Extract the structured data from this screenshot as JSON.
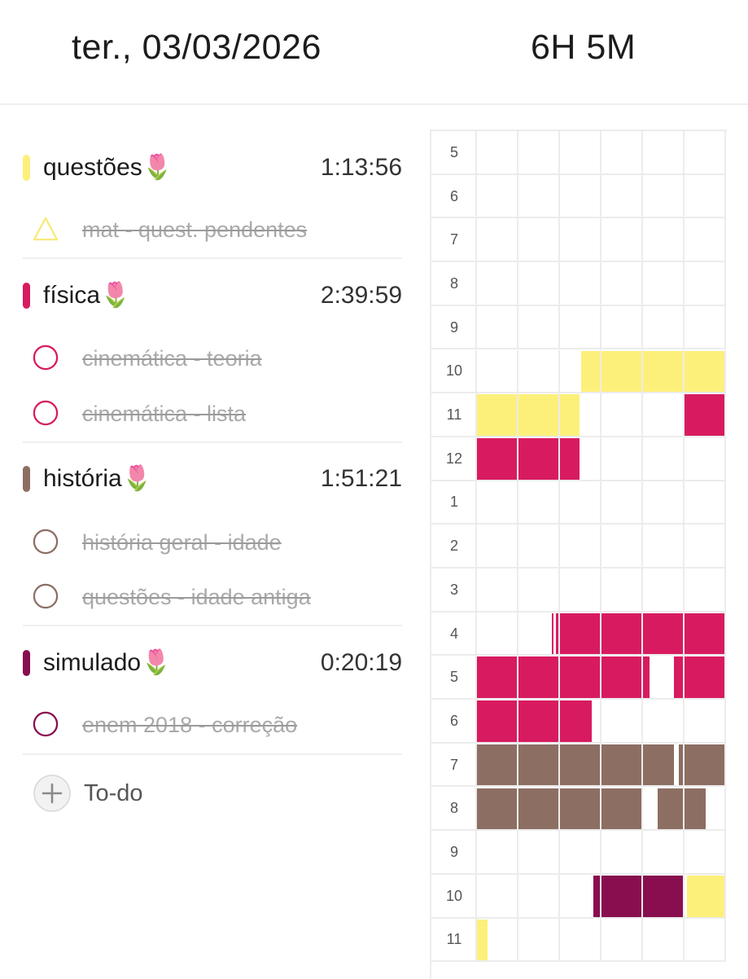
{
  "header": {
    "date": "ter., 03/03/2026",
    "total": "6H 5M"
  },
  "colors": {
    "questoes": "#fdf07a",
    "fisica": "#d81b60",
    "historia": "#8d6e63",
    "simulado": "#880e4f",
    "grid_line": "#ececec",
    "divider": "#efefef"
  },
  "groups": [
    {
      "name": "questões🌷",
      "time": "1:13:56",
      "color": "#fdf07a",
      "tasks": [
        {
          "label": "mat - quest. pendentes",
          "check_icon": "triangle-outline-icon",
          "done": true
        }
      ]
    },
    {
      "name": "física🌷",
      "time": "2:39:59",
      "color": "#d81b60",
      "tasks": [
        {
          "label": "cinemática - teoria",
          "check_icon": "circle-outline-icon",
          "done": true
        },
        {
          "label": "cinemática - lista",
          "check_icon": "circle-outline-icon",
          "done": true
        }
      ]
    },
    {
      "name": "história🌷",
      "time": "1:51:21",
      "color": "#8d6e63",
      "tasks": [
        {
          "label": "história geral - idade",
          "check_icon": "circle-outline-icon",
          "done": true
        },
        {
          "label": "questões - idade antiga",
          "check_icon": "circle-outline-icon",
          "done": true
        }
      ]
    },
    {
      "name": "simulado🌷",
      "time": "0:20:19",
      "color": "#880e4f",
      "tasks": [
        {
          "label": "enem 2018 - correção",
          "check_icon": "circle-outline-icon",
          "done": true
        }
      ]
    }
  ],
  "todo": {
    "label": "To-do",
    "icon": "plus-circle-icon"
  },
  "timeline": {
    "hour_labels": [
      "5",
      "6",
      "7",
      "8",
      "9",
      "10",
      "11",
      "12",
      "1",
      "2",
      "3",
      "4",
      "5",
      "6",
      "7",
      "8",
      "9",
      "10",
      "11"
    ],
    "blocks": [
      {
        "row": 5,
        "from_min": 25,
        "to_min": 60,
        "subject": "questoes"
      },
      {
        "row": 6,
        "from_min": 0,
        "to_min": 25,
        "subject": "questoes"
      },
      {
        "row": 6,
        "from_min": 50,
        "to_min": 60,
        "subject": "fisica"
      },
      {
        "row": 7,
        "from_min": 0,
        "to_min": 25,
        "subject": "fisica"
      },
      {
        "row": 11,
        "from_min": 18,
        "to_min": 18.5,
        "subject": "fisica"
      },
      {
        "row": 11,
        "from_min": 19,
        "to_min": 60,
        "subject": "fisica"
      },
      {
        "row": 12,
        "from_min": 0,
        "to_min": 42,
        "subject": "fisica"
      },
      {
        "row": 12,
        "from_min": 47.5,
        "to_min": 60,
        "subject": "fisica"
      },
      {
        "row": 13,
        "from_min": 0,
        "to_min": 28,
        "subject": "fisica"
      },
      {
        "row": 14,
        "from_min": 0,
        "to_min": 47.8,
        "subject": "historia"
      },
      {
        "row": 14,
        "from_min": 48.6,
        "to_min": 60,
        "subject": "historia"
      },
      {
        "row": 15,
        "from_min": 0,
        "to_min": 40,
        "subject": "historia"
      },
      {
        "row": 15,
        "from_min": 43.5,
        "to_min": 55.5,
        "subject": "historia"
      },
      {
        "row": 17,
        "from_min": 28,
        "to_min": 50,
        "subject": "simulado"
      },
      {
        "row": 17,
        "from_min": 50.5,
        "to_min": 60,
        "subject": "questoes"
      },
      {
        "row": 18,
        "from_min": 0,
        "to_min": 3,
        "subject": "questoes"
      }
    ]
  }
}
